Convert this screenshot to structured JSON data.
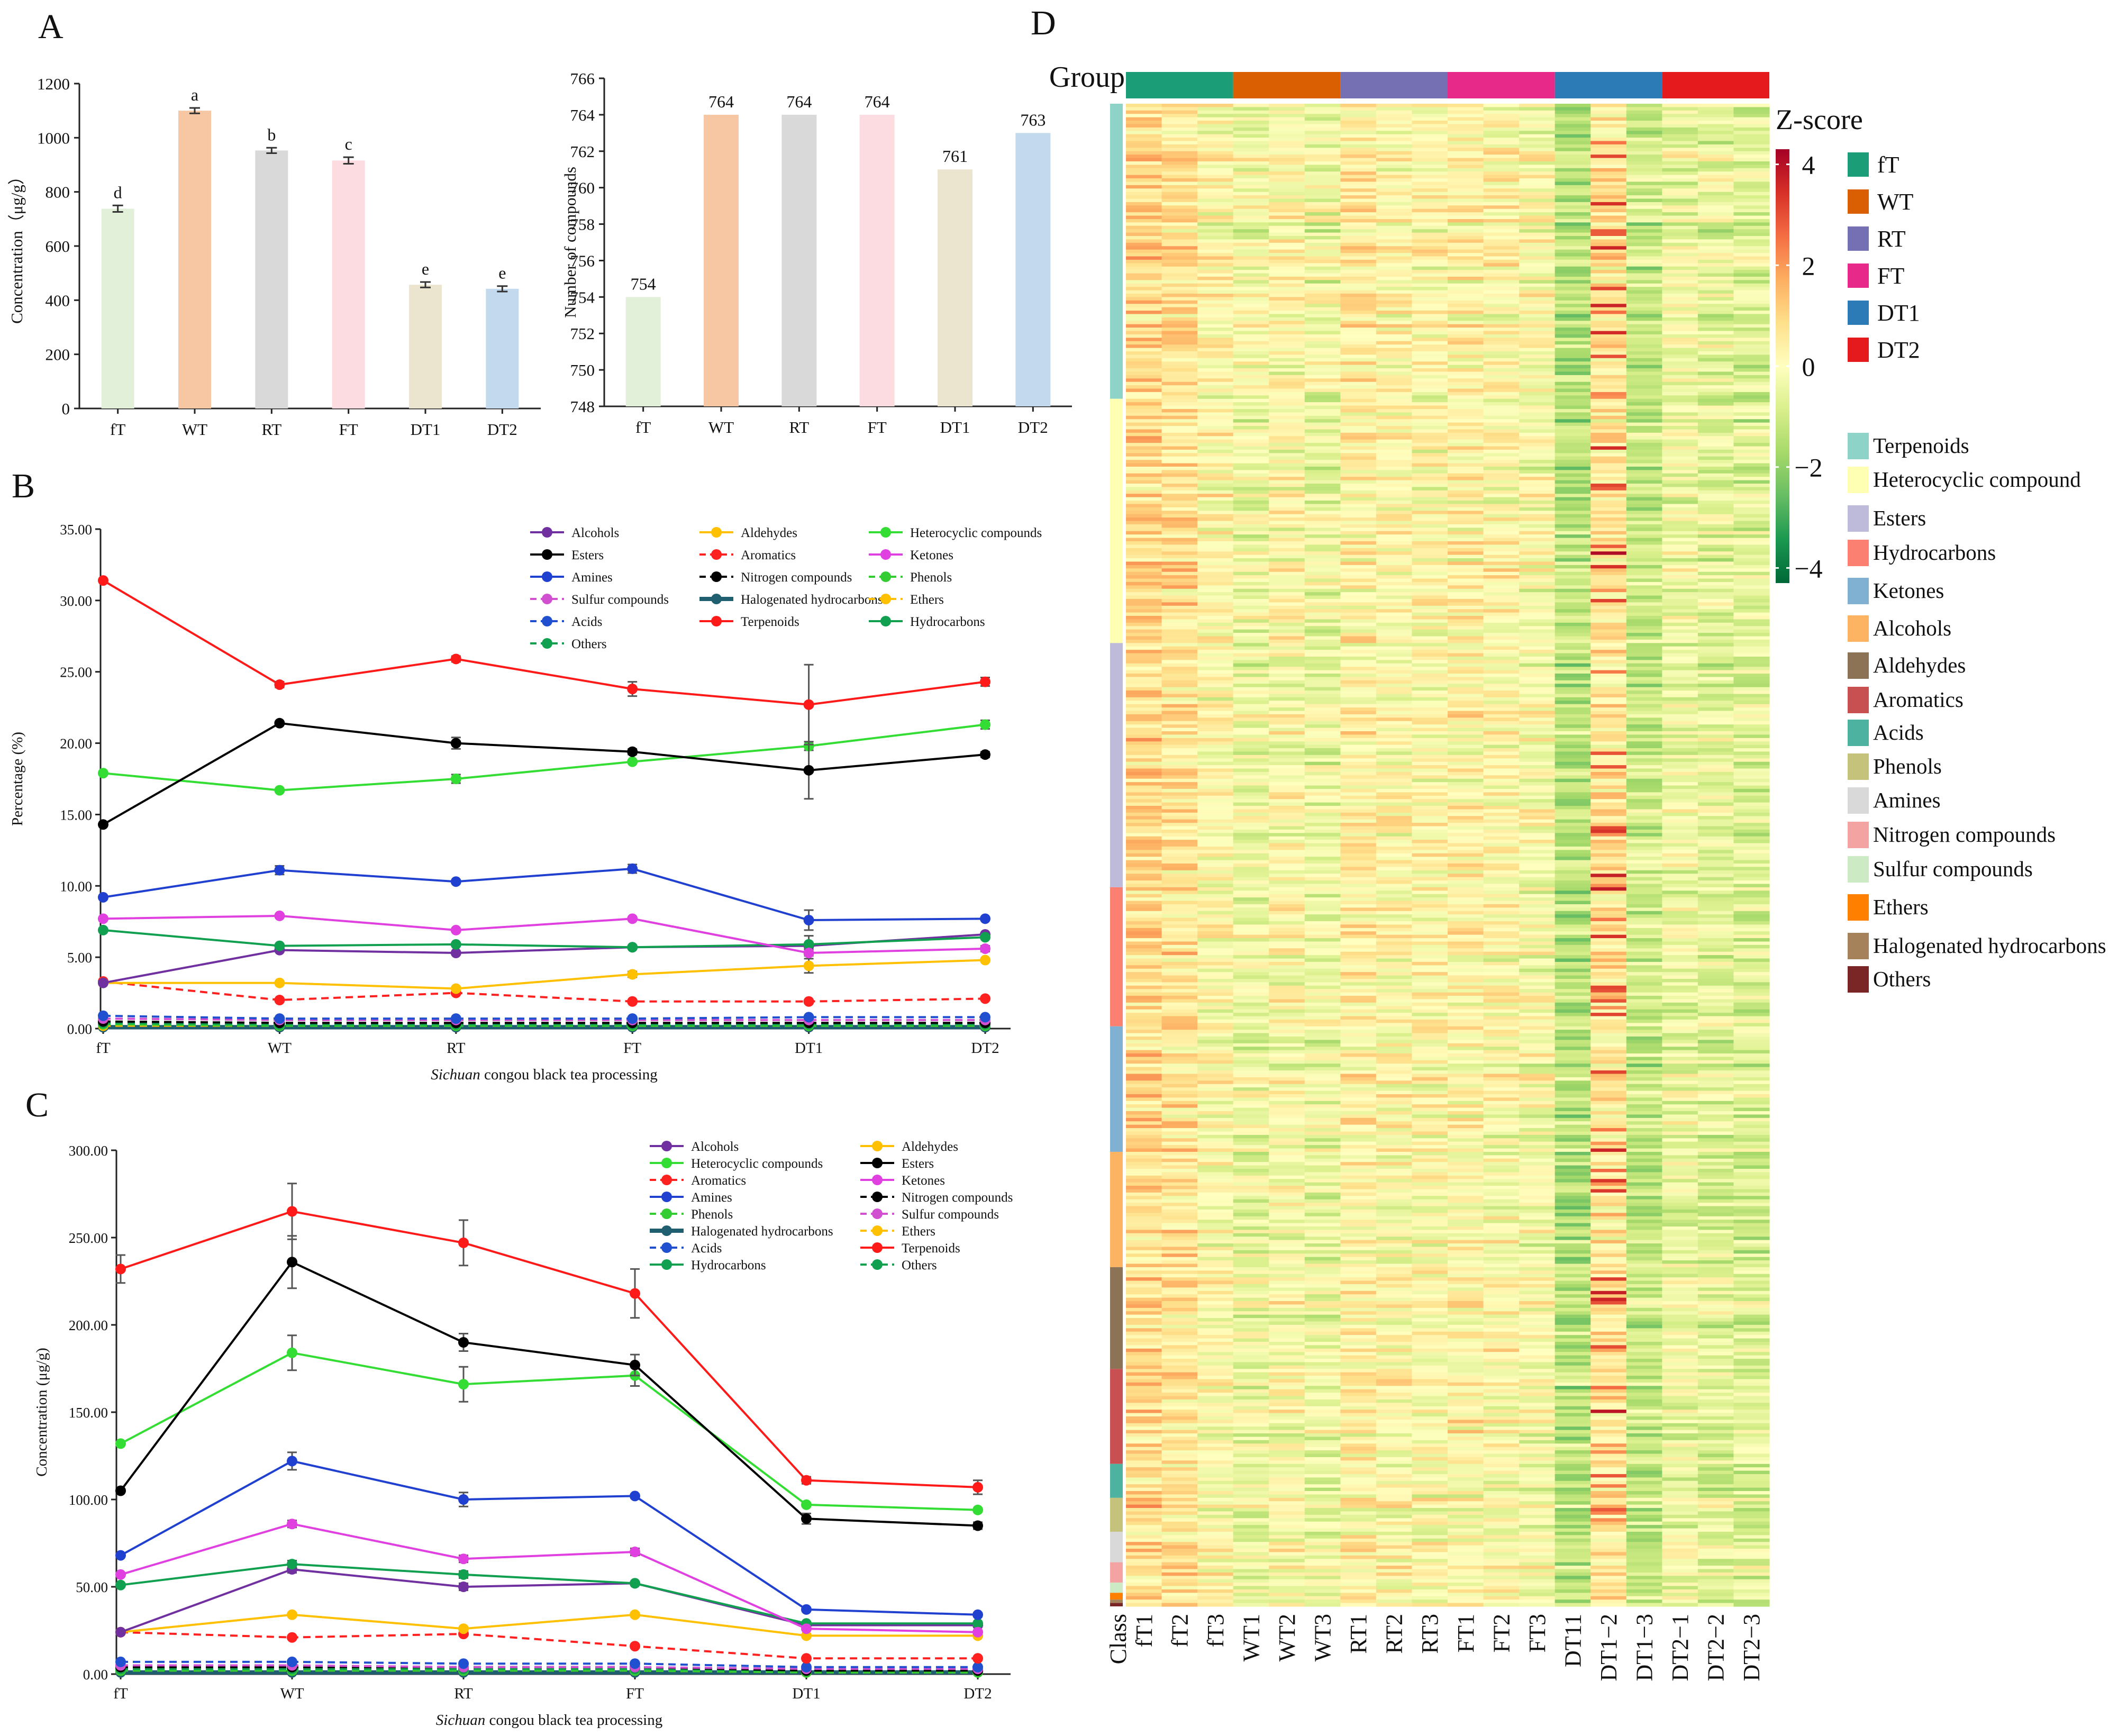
{
  "colors": {
    "fT": "#e2efd9",
    "WT": "#f7c6a3",
    "RT": "#d9d9d9",
    "FT": "#fcdce0",
    "DT1": "#ebe4cf",
    "DT2": "#c3d9ee",
    "Alcohols": "#7030a0",
    "Aldehydes": "#ffc000",
    "Heterocyclic compounds": "#33dd33",
    "Esters": "#000000",
    "Aromatics": "#ff2020",
    "Ketones": "#e040e0",
    "Amines": "#2040d0",
    "Nitrogen compounds": "#000000",
    "Phenols": "#33cc33",
    "Sulfur compounds": "#d050d0",
    "Halogenated hydrocarbons": "#1f5f6f",
    "Ethers": "#ffc000",
    "Acids": "#2050d0",
    "Terpenoids": "#ff1a1a",
    "Hydrocarbons": "#10a050",
    "Others": "#10a050"
  },
  "panel_labels": {
    "A": "A",
    "B": "B",
    "C": "C",
    "D": "D"
  },
  "chart_data": [
    {
      "id": "A1",
      "type": "bar",
      "categories": [
        "fT",
        "WT",
        "RT",
        "FT",
        "DT1",
        "DT2"
      ],
      "values": [
        738,
        1100,
        953,
        916,
        457,
        442
      ],
      "errors": [
        12,
        10,
        10,
        12,
        10,
        10
      ],
      "letters": [
        "d",
        "a",
        "b",
        "c",
        "e",
        "e"
      ],
      "ylabel": "Concentration（μg/g）",
      "ylim": [
        0,
        1200
      ],
      "yticks": [
        "0",
        "200",
        "400",
        "600",
        "800",
        "1000",
        "1200"
      ]
    },
    {
      "id": "A2",
      "type": "bar",
      "categories": [
        "fT",
        "WT",
        "RT",
        "FT",
        "DT1",
        "DT2"
      ],
      "values": [
        754,
        764,
        764,
        764,
        761,
        763
      ],
      "value_labels": [
        "754",
        "764",
        "764",
        "764",
        "761",
        "763"
      ],
      "ylabel": "Number of compounds",
      "ylim": [
        748,
        766
      ],
      "yticks": [
        "748",
        "750",
        "752",
        "754",
        "756",
        "758",
        "760",
        "762",
        "764",
        "766"
      ]
    },
    {
      "id": "B",
      "type": "line",
      "categories": [
        "fT",
        "WT",
        "RT",
        "FT",
        "DT1",
        "DT2"
      ],
      "ylabel": "Percentage (%)",
      "xlabel_italic": "Sichuan",
      "xlabel_rest": " congou black tea processing",
      "ylim": [
        0,
        35
      ],
      "yticks": [
        "0.00",
        "5.00",
        "10.00",
        "15.00",
        "20.00",
        "25.00",
        "30.00",
        "35.00"
      ],
      "legend": [
        [
          "Alcohols",
          "Aldehydes",
          "Heterocyclic compounds"
        ],
        [
          "Esters",
          "Aromatics",
          "Ketones"
        ],
        [
          "Amines",
          "Nitrogen compounds",
          "Phenols"
        ],
        [
          "Sulfur compounds",
          "Halogenated hydrocarbons",
          "Ethers"
        ],
        [
          "Acids",
          "Terpenoids",
          "Hydrocarbons"
        ],
        [
          "Others"
        ]
      ],
      "series": [
        {
          "name": "Terpenoids",
          "values": [
            31.4,
            24.1,
            25.9,
            23.8,
            22.7,
            24.3
          ],
          "errors": [
            0,
            0.2,
            0.2,
            0.5,
            2.8,
            0.3
          ],
          "dash": false
        },
        {
          "name": "Esters",
          "values": [
            14.3,
            21.4,
            20.0,
            19.4,
            18.1,
            19.2
          ],
          "errors": [
            0,
            0.1,
            0.4,
            0.2,
            2.0,
            0.2
          ],
          "dash": false
        },
        {
          "name": "Heterocyclic compounds",
          "values": [
            17.9,
            16.7,
            17.5,
            18.7,
            19.8,
            21.3
          ],
          "errors": [
            0,
            0.1,
            0.3,
            0.1,
            0.3,
            0.3
          ],
          "dash": false
        },
        {
          "name": "Amines",
          "values": [
            9.2,
            11.1,
            10.3,
            11.2,
            7.6,
            7.7
          ],
          "errors": [
            0,
            0.3,
            0.1,
            0.3,
            0.7,
            0.1
          ],
          "dash": false
        },
        {
          "name": "Ketones",
          "values": [
            7.7,
            7.9,
            6.9,
            7.7,
            5.3,
            5.6
          ],
          "errors": [
            0,
            0.1,
            0.1,
            0.1,
            0.2,
            0.2
          ],
          "dash": false
        },
        {
          "name": "Hydrocarbons",
          "values": [
            6.9,
            5.8,
            5.9,
            5.7,
            5.9,
            6.4
          ],
          "errors": [
            0,
            0.1,
            0.1,
            0.1,
            0.6,
            0.1
          ],
          "dash": false
        },
        {
          "name": "Alcohols",
          "values": [
            3.2,
            5.5,
            5.3,
            5.7,
            5.8,
            6.6
          ],
          "errors": [
            0,
            0.1,
            0.1,
            0.1,
            0.2,
            0.1
          ],
          "dash": false
        },
        {
          "name": "Aldehydes",
          "values": [
            3.2,
            3.2,
            2.8,
            3.8,
            4.4,
            4.8
          ],
          "errors": [
            0,
            0.1,
            0.1,
            0.2,
            0.5,
            0.1
          ],
          "dash": false
        },
        {
          "name": "Aromatics",
          "values": [
            3.3,
            2.0,
            2.5,
            1.9,
            1.9,
            2.1
          ],
          "errors": [
            0,
            0.1,
            0.1,
            0.1,
            0.1,
            0.1
          ],
          "dash": true
        },
        {
          "name": "Acids",
          "values": [
            0.9,
            0.7,
            0.7,
            0.7,
            0.8,
            0.8
          ],
          "errors": [
            0,
            0,
            0,
            0,
            0,
            0
          ],
          "dash": true
        },
        {
          "name": "Sulfur compounds",
          "values": [
            0.7,
            0.6,
            0.6,
            0.6,
            0.6,
            0.6
          ],
          "errors": [
            0,
            0,
            0,
            0,
            0,
            0
          ],
          "dash": true
        },
        {
          "name": "Nitrogen compounds",
          "values": [
            0.5,
            0.4,
            0.4,
            0.4,
            0.4,
            0.4
          ],
          "errors": [
            0,
            0,
            0,
            0,
            0,
            0
          ],
          "dash": true
        },
        {
          "name": "Others",
          "values": [
            0.4,
            0.3,
            0.3,
            0.3,
            0.3,
            0.3
          ],
          "errors": [
            0,
            0,
            0,
            0,
            0,
            0
          ],
          "dash": true
        },
        {
          "name": "Phenols",
          "values": [
            0.3,
            0.2,
            0.2,
            0.2,
            0.2,
            0.2
          ],
          "errors": [
            0,
            0,
            0,
            0,
            0,
            0
          ],
          "dash": true
        },
        {
          "name": "Ethers",
          "values": [
            0.2,
            0.2,
            0.2,
            0.2,
            0.2,
            0.2
          ],
          "errors": [
            0,
            0,
            0,
            0,
            0,
            0
          ],
          "dash": true
        },
        {
          "name": "Halogenated hydrocarbons",
          "values": [
            0.1,
            0.1,
            0.1,
            0.1,
            0.1,
            0.1
          ],
          "errors": [
            0,
            0,
            0,
            0,
            0,
            0
          ],
          "dash": false
        }
      ]
    },
    {
      "id": "C",
      "type": "line",
      "categories": [
        "fT",
        "WT",
        "RT",
        "FT",
        "DT1",
        "DT2"
      ],
      "ylabel": "Concentration (μg/g)",
      "xlabel_italic": "Sichuan",
      "xlabel_rest": " congou black tea processing",
      "ylim": [
        0,
        300
      ],
      "yticks": [
        "0.00",
        "50.00",
        "100.00",
        "150.00",
        "200.00",
        "250.00",
        "300.00"
      ],
      "legend": [
        [
          "Alcohols",
          "Aldehydes"
        ],
        [
          "Heterocyclic compounds",
          "Esters"
        ],
        [
          "Aromatics",
          "Ketones"
        ],
        [
          "Amines",
          "Nitrogen compounds"
        ],
        [
          "Phenols",
          "Sulfur compounds"
        ],
        [
          "Halogenated hydrocarbons",
          "Ethers"
        ],
        [
          "Acids",
          "Terpenoids"
        ],
        [
          "Hydrocarbons",
          "Others"
        ]
      ],
      "series": [
        {
          "name": "Terpenoids",
          "values": [
            232,
            265,
            247,
            218,
            111,
            107
          ],
          "errors": [
            8,
            16,
            13,
            14,
            2,
            4
          ],
          "dash": false
        },
        {
          "name": "Esters",
          "values": [
            105,
            236,
            190,
            177,
            89,
            85
          ],
          "errors": [
            0,
            15,
            5,
            6,
            3,
            2
          ],
          "dash": false
        },
        {
          "name": "Heterocyclic compounds",
          "values": [
            132,
            184,
            166,
            171,
            97,
            94
          ],
          "errors": [
            0,
            10,
            10,
            6,
            1,
            1
          ],
          "dash": false
        },
        {
          "name": "Amines",
          "values": [
            68,
            122,
            100,
            102,
            37,
            34
          ],
          "errors": [
            0,
            5,
            4,
            1,
            1,
            1
          ],
          "dash": false
        },
        {
          "name": "Ketones",
          "values": [
            57,
            86,
            66,
            70,
            26,
            24
          ],
          "errors": [
            0,
            2,
            2,
            2,
            1,
            1
          ],
          "dash": false
        },
        {
          "name": "Hydrocarbons",
          "values": [
            51,
            63,
            57,
            52,
            29,
            29
          ],
          "errors": [
            0,
            2,
            2,
            1,
            1,
            1
          ],
          "dash": false
        },
        {
          "name": "Alcohols",
          "values": [
            24,
            60,
            50,
            52,
            28,
            28
          ],
          "errors": [
            0,
            2,
            2,
            1,
            1,
            1
          ],
          "dash": false
        },
        {
          "name": "Aldehydes",
          "values": [
            24,
            34,
            26,
            34,
            22,
            22
          ],
          "errors": [
            0,
            1,
            1,
            1,
            1,
            1
          ],
          "dash": false
        },
        {
          "name": "Aromatics",
          "values": [
            24,
            21,
            23,
            16,
            9,
            9
          ],
          "errors": [
            0,
            1,
            1,
            1,
            0,
            0
          ],
          "dash": true
        },
        {
          "name": "Acids",
          "values": [
            7,
            7,
            6,
            6,
            4,
            4
          ],
          "errors": [
            0,
            0,
            0,
            0,
            0,
            0
          ],
          "dash": true
        },
        {
          "name": "Sulfur compounds",
          "values": [
            5,
            5,
            4,
            4,
            3,
            3
          ],
          "errors": [
            0,
            0,
            0,
            0,
            0,
            0
          ],
          "dash": true
        },
        {
          "name": "Nitrogen compounds",
          "values": [
            4,
            4,
            4,
            4,
            2,
            2
          ],
          "errors": [
            0,
            0,
            0,
            0,
            0,
            0
          ],
          "dash": true
        },
        {
          "name": "Others",
          "values": [
            3,
            3,
            3,
            3,
            2,
            2
          ],
          "errors": [
            0,
            0,
            0,
            0,
            0,
            0
          ],
          "dash": true
        },
        {
          "name": "Phenols",
          "values": [
            2,
            2,
            2,
            2,
            1,
            1
          ],
          "errors": [
            0,
            0,
            0,
            0,
            0,
            0
          ],
          "dash": true
        },
        {
          "name": "Ethers",
          "values": [
            2,
            2,
            2,
            2,
            1,
            1
          ],
          "errors": [
            0,
            0,
            0,
            0,
            0,
            0
          ],
          "dash": true
        },
        {
          "name": "Halogenated hydrocarbons",
          "values": [
            1,
            1,
            1,
            1,
            1,
            1
          ],
          "errors": [
            0,
            0,
            0,
            0,
            0,
            0
          ],
          "dash": false
        }
      ]
    },
    {
      "id": "D",
      "type": "heatmap",
      "group_title": "Group",
      "class_title": "Class",
      "zscore_title": "Z-score",
      "zscore_range": [
        -4.3,
        4.3
      ],
      "zscore_ticks": [
        "4",
        "2",
        "0",
        "−2",
        "−4"
      ],
      "zscore_tick_values": [
        4,
        2,
        0,
        -2,
        -4
      ],
      "zscore_stops": [
        "#006837",
        "#1a9850",
        "#66bd63",
        "#a6d96a",
        "#d9ef8b",
        "#ffffbf",
        "#fee08b",
        "#fdae61",
        "#f46d43",
        "#d73027",
        "#a50026"
      ],
      "groups": [
        {
          "name": "fT",
          "color": "#1b9e77"
        },
        {
          "name": "WT",
          "color": "#d95f02"
        },
        {
          "name": "RT",
          "color": "#7570b3"
        },
        {
          "name": "FT",
          "color": "#e7298a"
        },
        {
          "name": "DT1",
          "color": "#2c7bb6"
        },
        {
          "name": "DT2",
          "color": "#e41a1c"
        }
      ],
      "columns": [
        "fT1",
        "fT2",
        "fT3",
        "WT1",
        "WT2",
        "WT3",
        "RT1",
        "RT2",
        "RT3",
        "FT1",
        "FT2",
        "FT3",
        "DT11",
        "DT1−2",
        "DT1−3",
        "DT2−1",
        "DT2−2",
        "DT2−3"
      ],
      "column_means": [
        0.9,
        0.7,
        0.1,
        -0.3,
        0.0,
        -0.4,
        0.3,
        0.1,
        0.1,
        0.2,
        0.1,
        -0.1,
        -1.4,
        0.6,
        -1.1,
        -0.4,
        -0.6,
        -0.7
      ],
      "classes": [
        {
          "name": "Terpenoids",
          "color": "#8dd3c7",
          "count": 87
        },
        {
          "name": "Heterocyclic compound",
          "color": "#ffffb3",
          "count": 72
        },
        {
          "name": "Esters",
          "color": "#bebada",
          "count": 72
        },
        {
          "name": "Hydrocarbons",
          "color": "#fb8072",
          "count": 41
        },
        {
          "name": "Ketones",
          "color": "#80b1d3",
          "count": 37
        },
        {
          "name": "Alcohols",
          "color": "#fdb462",
          "count": 34
        },
        {
          "name": "Aldehydes",
          "color": "#8c7355",
          "count": 30
        },
        {
          "name": "Aromatics",
          "color": "#c85050",
          "count": 28
        },
        {
          "name": "Acids",
          "color": "#4db3a0",
          "count": 10
        },
        {
          "name": "Phenols",
          "color": "#c5c27c",
          "count": 10
        },
        {
          "name": "Amines",
          "color": "#d9d9d9",
          "count": 9
        },
        {
          "name": "Nitrogen compounds",
          "color": "#f4a3a3",
          "count": 6
        },
        {
          "name": "Sulfur compounds",
          "color": "#ccebc5",
          "count": 3
        },
        {
          "name": "Ethers",
          "color": "#ff7f00",
          "count": 2
        },
        {
          "name": "Halogenated hydrocarbons",
          "color": "#a6825a",
          "count": 1
        },
        {
          "name": "Others",
          "color": "#7a2626",
          "count": 1
        }
      ]
    }
  ]
}
